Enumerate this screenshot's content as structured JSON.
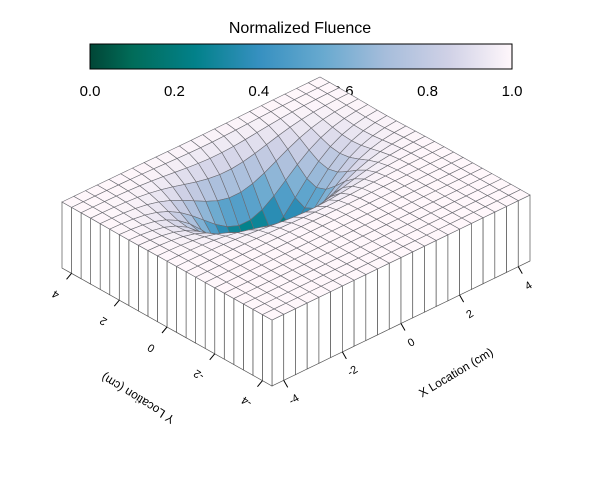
{
  "chart_data": {
    "type": "heatmap",
    "title": "Normalized Fluence",
    "colorbar": {
      "ticks": [
        "0.0",
        "0.2",
        "0.4",
        "0.6",
        "0.8",
        "1.0"
      ],
      "range": [
        0,
        1
      ],
      "colormap": "PuBuGn_r",
      "colors": {
        "stops": [
          [
            0.0,
            "#014636"
          ],
          [
            0.1,
            "#016c59"
          ],
          [
            0.25,
            "#02818a"
          ],
          [
            0.4,
            "#3690c0"
          ],
          [
            0.55,
            "#67a9cf"
          ],
          [
            0.7,
            "#a6bddb"
          ],
          [
            0.85,
            "#d0d1e6"
          ],
          [
            1.0,
            "#fff7fb"
          ]
        ]
      }
    },
    "x_axis": {
      "label": "X Location (cm)",
      "ticks": [
        "-4",
        "-2",
        "0",
        "2",
        "4"
      ],
      "tick_values": [
        -4,
        -2,
        0,
        2,
        4
      ],
      "range": [
        -4.4,
        4.4
      ]
    },
    "y_axis": {
      "label": "Y Location (cm)",
      "ticks": [
        "4",
        "2",
        "0",
        "-2",
        "-4"
      ],
      "tick_values": [
        4,
        2,
        0,
        -2,
        -4
      ],
      "range": [
        -4.4,
        4.4
      ]
    },
    "surface": {
      "grid": 22,
      "function": "fluence = 1 - 0.92*exp(-(((x-0.2)/2.0)^2 + ((y-1.6)/1.3)^2))",
      "peak_depth": 0.92,
      "center": {
        "x": 0.2,
        "y": 1.6
      },
      "width": {
        "x": 2.0,
        "y": 1.3
      },
      "wireframe": true,
      "has_side_walls": true
    }
  }
}
